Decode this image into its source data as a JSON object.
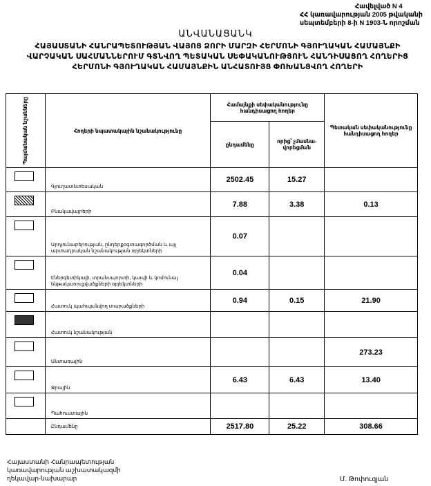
{
  "annex": {
    "line1": "Հավելված N 4",
    "line2": "ՀՀ կառավարության 2005 թվականի",
    "line3": "սեպտեմբերի 8-ի N 1903-Ն որոշման"
  },
  "title": "ԱՆՎԱՆԱՑԱՆԿ",
  "subtitle": "ՀԱՅԱՍՏԱՆԻ ՀԱՆՐԱՊԵՏՈՒԹՅԱՆ ՎԱՅՈՑ ՁՈՐԻ ՄԱՐԶԻ ՀԵՐՄՈՆԻ ԳՅՈՒՂԱԿԱՆ ՀԱՄԱՅՆՔԻ ՎԱՐՉԱԿԱՆ ՍԱՀՄԱՆՆԵՐՈՒՄ ԳՏՆՎՈՂ ՊԵՏԱԿԱՆ ՍԵՓԱԿԱՆՈՒԹՅՈՒՆ ՀԱՆԴԻՍԱՑՈՂ ՀՈՂԵՐԻՑ ՀԵՐՄՈՆԻ ԳՅՈՒՂԱԿԱՆ ՀԱՄԱՅՆՔԻՆ ԱՆՀԱՏՈՒՅՑ ՓՈԽԱՆՑՎՈՂ ՀՈՂԵՐԻ",
  "table": {
    "headers": {
      "symbols": "Պայմանական նշանները",
      "purpose": "Հողերի նպատակային նշանակությունը",
      "community": "Համայնքի սեփականությունը հանդիսացող հողեր",
      "total": "ընդամենը",
      "of_which": "որից՝ չմասնա-վորեցման",
      "state": "Պետական սեփականությունը հանդիսացող հողեր"
    },
    "rows": [
      {
        "label": "Գյուղատնտեսական",
        "symbol": "empty",
        "total": "2502.45",
        "of_which": "15.27",
        "state": ""
      },
      {
        "label": "Բնակավայրերի",
        "symbol": "hatched",
        "total": "7.88",
        "of_which": "3.38",
        "state": "0.13"
      },
      {
        "label": "Արդյունաբերության, ընդերքօգտագործման և այլ արտադրական նշանակության օբյեկտների",
        "symbol": "empty",
        "total": "0.07",
        "of_which": "",
        "state": ""
      },
      {
        "label": "Էներգետիկայի, տրանսպորտի, կապի և կոմունալ ենթակառուցվածքների օբյեկտների",
        "symbol": "empty",
        "total": "0.04",
        "of_which": "",
        "state": ""
      },
      {
        "label": "Հատուկ պահպանվող տարածքների",
        "symbol": "empty",
        "total": "0.94",
        "of_which": "0.15",
        "state": "21.90"
      },
      {
        "label": "Հատուկ նշանակության",
        "symbol": "dark",
        "total": "",
        "of_which": "",
        "state": ""
      },
      {
        "label": "Անտառային",
        "symbol": "empty",
        "total": "",
        "of_which": "",
        "state": "273.23"
      },
      {
        "label": "Ջրային",
        "symbol": "empty",
        "total": "6.43",
        "of_which": "6.43",
        "state": "13.40"
      },
      {
        "label": "Պահուստային",
        "symbol": "empty",
        "total": "",
        "of_which": "",
        "state": ""
      }
    ],
    "sum_row": {
      "label": "Ընդամենը",
      "total": "2517.80",
      "of_which": "25.22",
      "state": "308.66"
    }
  },
  "footer": {
    "position_line1": "Հայաստանի Հանրապետության",
    "position_line2": "կառավարության աշխատակազմի",
    "position_line3": "ղեկավար-նախարար",
    "signatory": "Մ. Թոփուզյան"
  }
}
